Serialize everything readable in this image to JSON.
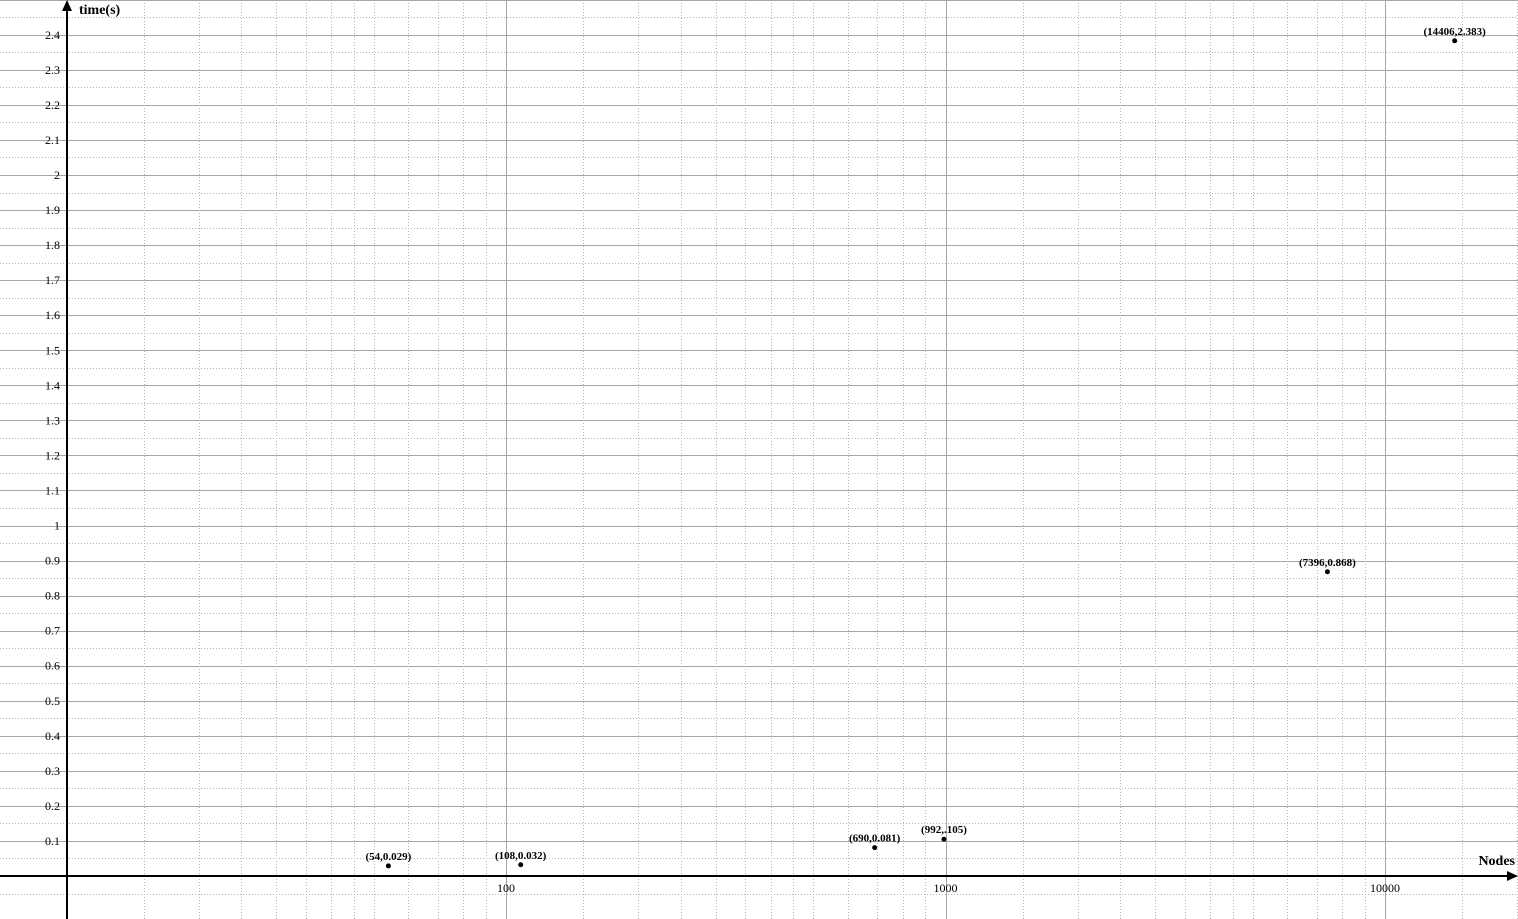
{
  "chart_data": {
    "type": "scatter",
    "xlabel": "Nodes",
    "ylabel": "time(s)",
    "x_scale": "log",
    "x_major_ticks": [
      100,
      1000,
      10000
    ],
    "x_tick_labels": [
      "100",
      "1000",
      "10000"
    ],
    "y_ticks": [
      0.1,
      0.2,
      0.3,
      0.4,
      0.5,
      0.6,
      0.7,
      0.8,
      0.9,
      1,
      1.1,
      1.2,
      1.3,
      1.4,
      1.5,
      1.6,
      1.7,
      1.8,
      1.9,
      2,
      2.1,
      2.2,
      2.3,
      2.4
    ],
    "y_tick_labels": [
      "0.1",
      "0.2",
      "0.3",
      "0.4",
      "0.5",
      "0.6",
      "0.7",
      "0.8",
      "0.9",
      "1",
      "1.1",
      "1.2",
      "1.3",
      "1.4",
      "1.5",
      "1.6",
      "1.7",
      "1.8",
      "1.9",
      "2",
      "2.1",
      "2.2",
      "2.3",
      "2.4"
    ],
    "grid": true,
    "colors": {
      "points": "#000000",
      "axes": "#000000",
      "grid": "#a6a6a6"
    },
    "points": [
      {
        "x": 54,
        "y": 0.029,
        "label": "(54,0.029)"
      },
      {
        "x": 108,
        "y": 0.032,
        "label": "(108,0.032)"
      },
      {
        "x": 690,
        "y": 0.081,
        "label": "(690,0.081)"
      },
      {
        "x": 992,
        "y": 0.105,
        "label": "(992,.105)"
      },
      {
        "x": 7396,
        "y": 0.868,
        "label": "(7396,0.868)"
      },
      {
        "x": 14406,
        "y": 2.383,
        "label": "(14406,2.383)"
      }
    ]
  }
}
